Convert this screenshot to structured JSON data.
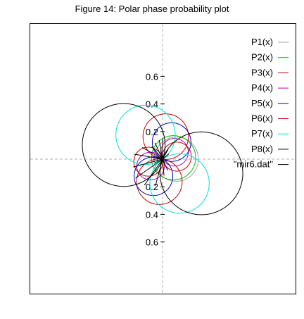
{
  "chart_data": {
    "type": "line",
    "subtype": "polar",
    "title": "Figure 14:  Polar phase probability plot",
    "xlabel": "",
    "ylabel": "",
    "radial_tick_labels": [
      "0.6",
      "0.4",
      "0.2",
      "0",
      "0.2",
      "0.4",
      "0.6"
    ],
    "radial_ticks": [
      0.6,
      0.4,
      0.2,
      0,
      -0.2,
      -0.4,
      -0.6
    ],
    "xlim": [
      -0.64,
      0.68
    ],
    "ylim": [
      -0.64,
      0.64
    ],
    "grid": true,
    "legend_position": "top-right",
    "series": [
      {
        "name": "P1(x)",
        "color": "#a0a0a0",
        "shape": "circle",
        "center": [
          0.1,
          0.0
        ],
        "r": 0.16
      },
      {
        "name": "P2(x)",
        "color": "#00c000",
        "shape": "circle",
        "center": [
          0.08,
          0.01
        ],
        "r": 0.16
      },
      {
        "name": "P3(x)",
        "color": "#c00000",
        "shape": "rose",
        "k": 2,
        "a": 0.33,
        "phase_deg": 82
      },
      {
        "name": "P4(x)",
        "color": "#c000c0",
        "shape": "rose",
        "k": 2,
        "a": 0.2,
        "phase_deg": 30
      },
      {
        "name": "P5(x)",
        "color": "#0000c0",
        "shape": "rose",
        "k": 2,
        "a": 0.28,
        "phase_deg": 62
      },
      {
        "name": "P6(x)",
        "color": "#c00000",
        "shape": "rose",
        "k": 2,
        "a": 0.21,
        "phase_deg": 10
      },
      {
        "name": "P7(x)",
        "color": "#00e0e0",
        "shape": "rose",
        "k": 2,
        "a": 0.43,
        "phase_deg": 125
      },
      {
        "name": "P8(x)",
        "color": "#000000",
        "shape": "rose",
        "k": 2,
        "a": 0.6,
        "phase_deg": 160
      },
      {
        "name": "\"mir6.dat\"",
        "color": "#000000",
        "shape": "rays",
        "angles_deg": [
          90,
          100,
          115,
          130,
          150,
          170,
          195,
          215,
          235,
          255,
          275,
          295,
          60,
          40
        ],
        "lengths": [
          0.15,
          0.14,
          0.13,
          0.12,
          0.17,
          0.21,
          0.22,
          0.24,
          0.23,
          0.2,
          0.12,
          0.09,
          0.08,
          0.06
        ]
      }
    ]
  }
}
